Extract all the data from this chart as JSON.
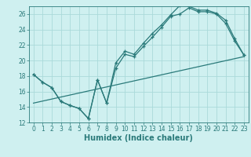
{
  "title": "",
  "xlabel": "Humidex (Indice chaleur)",
  "ylabel": "",
  "xlim": [
    -0.5,
    23.5
  ],
  "ylim": [
    12,
    27
  ],
  "yticks": [
    12,
    14,
    16,
    18,
    20,
    22,
    24,
    26
  ],
  "xticks": [
    0,
    1,
    2,
    3,
    4,
    5,
    6,
    7,
    8,
    9,
    10,
    11,
    12,
    13,
    14,
    15,
    16,
    17,
    18,
    19,
    20,
    21,
    22,
    23
  ],
  "bg_color": "#cff0f0",
  "grid_color": "#aadada",
  "line_color": "#2a7a7a",
  "line1_x": [
    0,
    1,
    2,
    3,
    4,
    5,
    6,
    7,
    8,
    9,
    10,
    11,
    12,
    13,
    14,
    15,
    16,
    17,
    18,
    19,
    20,
    21,
    22,
    23
  ],
  "line1_y": [
    18.2,
    17.2,
    16.5,
    14.7,
    14.2,
    13.8,
    12.5,
    17.5,
    14.5,
    19.7,
    21.2,
    20.8,
    22.2,
    23.5,
    24.6,
    25.9,
    27.1,
    27.0,
    26.5,
    26.5,
    26.1,
    25.2,
    22.8,
    20.7
  ],
  "line2_x": [
    0,
    1,
    2,
    3,
    4,
    5,
    6,
    7,
    8,
    9,
    10,
    11,
    12,
    13,
    14,
    15,
    16,
    17,
    18,
    19,
    20,
    21,
    22,
    23
  ],
  "line2_y": [
    18.2,
    17.2,
    16.5,
    14.7,
    14.2,
    13.8,
    12.5,
    17.5,
    14.5,
    19.0,
    20.8,
    20.5,
    21.8,
    23.0,
    24.3,
    25.7,
    26.0,
    26.8,
    26.3,
    26.3,
    26.0,
    24.8,
    22.5,
    20.7
  ],
  "line3_x": [
    0,
    23
  ],
  "line3_y": [
    14.5,
    20.5
  ],
  "tick_fontsize": 5.5,
  "xlabel_fontsize": 7
}
